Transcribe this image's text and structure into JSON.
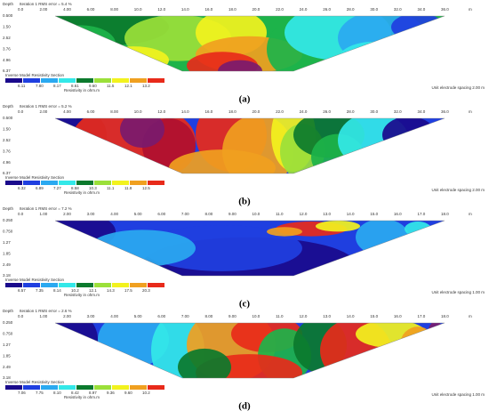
{
  "panels": [
    {
      "depth_label": "Depth",
      "title": "Iteration 1 RMS error = 5.4 %",
      "x_ticks": [
        "0.0",
        "2.00",
        "4.00",
        "6.00",
        "8.00",
        "10.0",
        "12.0",
        "14.0",
        "16.0",
        "18.0",
        "20.0",
        "22.0",
        "24.0",
        "26.0",
        "28.0",
        "30.0",
        "32.0",
        "34.0",
        "36.0"
      ],
      "x_unit": "m",
      "depth_ticks": [
        "0.500",
        "1.50",
        "2.52",
        "3.76",
        "4.96",
        "6.37"
      ],
      "legend_title": "Inverse Model Resistivity Section",
      "legend_values": [
        "6.11",
        "7.80",
        "8.17",
        "8.61",
        "9.60",
        "11.5",
        "12.1",
        "13.2"
      ],
      "legend_unit": "Resistivity in ohm.m",
      "spacing": "Unit electrode spacing 2.00 m",
      "caption": "(a)"
    },
    {
      "depth_label": "Depth",
      "title": "Iteration 1 RMS error = 5.2 %",
      "x_ticks": [
        "0.0",
        "2.00",
        "4.00",
        "6.00",
        "8.00",
        "10.0",
        "12.0",
        "14.0",
        "16.0",
        "18.0",
        "20.0",
        "22.0",
        "24.0",
        "26.0",
        "28.0",
        "30.0",
        "32.0",
        "34.0",
        "36.0"
      ],
      "x_unit": "m",
      "depth_ticks": [
        "0.500",
        "1.50",
        "2.52",
        "3.76",
        "4.96",
        "6.37"
      ],
      "legend_title": "Inverse Model Resistivity Section",
      "legend_values": [
        "6.32",
        "6.89",
        "7.27",
        "8.58",
        "10.3",
        "11.1",
        "11.8",
        "12.5"
      ],
      "legend_unit": "Resistivity in ohm.m",
      "spacing": "Unit electrode spacing 2.00 m",
      "caption": "(b)"
    },
    {
      "depth_label": "Depth",
      "title": "Iteration 1 RMS error = 7.2 %",
      "x_ticks": [
        "0.0",
        "1.00",
        "2.00",
        "3.00",
        "4.00",
        "5.00",
        "6.00",
        "7.00",
        "8.00",
        "9.00",
        "10.0",
        "11.0",
        "12.0",
        "13.0",
        "14.0",
        "15.0",
        "16.0",
        "17.0",
        "18.0"
      ],
      "x_unit": "m",
      "depth_ticks": [
        "0.250",
        "0.750",
        "1.27",
        "1.85",
        "2.49",
        "3.18"
      ],
      "legend_title": "Inverse Model Resistivity Section",
      "legend_values": [
        "6.57",
        "7.35",
        "8.14",
        "10.2",
        "12.1",
        "14.3",
        "17.5",
        "20.3"
      ],
      "legend_unit": "Resistivity in ohm.m",
      "spacing": "Unit electrode spacing 1.00 m",
      "caption": "(c)"
    },
    {
      "depth_label": "Depth",
      "title": "Iteration 1 RMS error = 2.6 %",
      "x_ticks": [
        "0.0",
        "1.00",
        "2.00",
        "3.00",
        "4.00",
        "5.00",
        "6.00",
        "7.00",
        "8.00",
        "9.00",
        "10.0",
        "11.0",
        "12.0",
        "13.0",
        "14.0",
        "15.0",
        "16.0",
        "17.0",
        "18.0"
      ],
      "x_unit": "m",
      "depth_ticks": [
        "0.250",
        "0.750",
        "1.27",
        "1.85",
        "2.49",
        "3.18"
      ],
      "legend_title": "Inverse Model Resistivity Section",
      "legend_values": [
        "7.06",
        "7.75",
        "8.10",
        "8.42",
        "8.97",
        "9.36",
        "9.60",
        "10.2"
      ],
      "legend_unit": "Resistivity in ohm.m",
      "spacing": "Unit electrode spacing 1.00 m",
      "caption": "(d)"
    }
  ]
}
